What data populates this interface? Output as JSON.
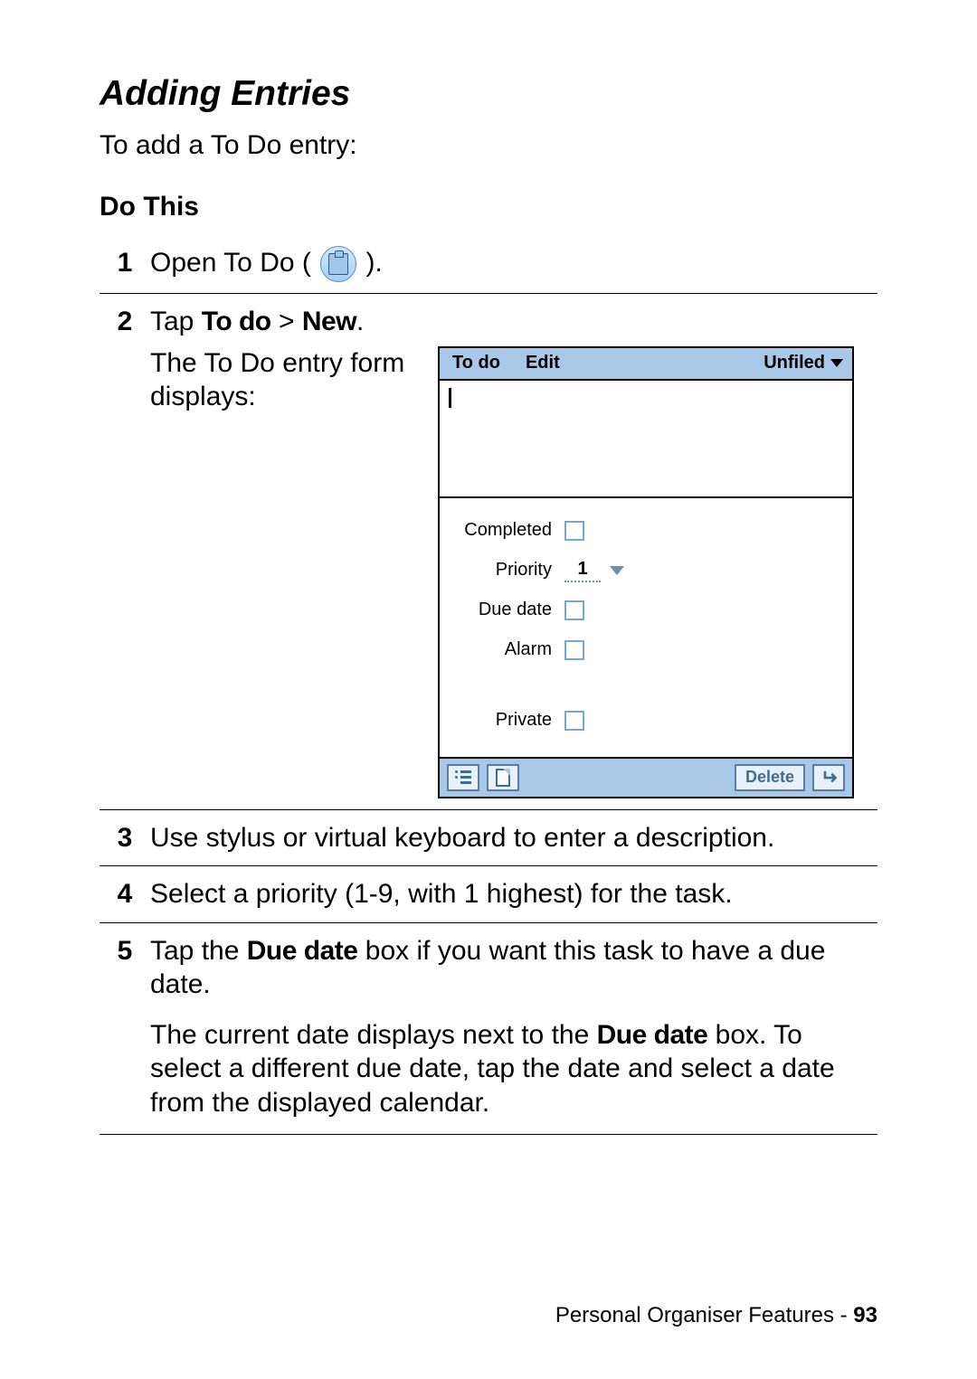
{
  "heading": "Adding Entries",
  "intro": "To add a To Do entry:",
  "do_this": "Do This",
  "steps": {
    "s1": {
      "num": "1",
      "pre": "Open To Do ( ",
      "post": " )."
    },
    "s2": {
      "num": "2",
      "line1_a": "Tap ",
      "line1_b": "To do",
      "line1_c": " > ",
      "line1_d": "New",
      "line1_e": ".",
      "line2": "The To Do entry form displays:"
    },
    "s3": {
      "num": "3",
      "text": "Use stylus or virtual keyboard to enter a description."
    },
    "s4": {
      "num": "4",
      "text": "Select a priority (1-9, with 1 highest) for the task."
    },
    "s5": {
      "num": "5",
      "p1_a": "Tap the ",
      "p1_b": "Due date",
      "p1_c": " box if you want this task to have a due date.",
      "p2_a": "The current date displays next to the ",
      "p2_b": "Due date",
      "p2_c": " box. To select a different due date, tap the date and select a date from the displayed calendar."
    }
  },
  "pda": {
    "menubar": {
      "todo": "To do",
      "edit": "Edit",
      "category": "Unfiled"
    },
    "fields": {
      "completed": "Completed",
      "priority": "Priority",
      "priority_value": "1",
      "due_date": "Due date",
      "alarm": "Alarm",
      "private": "Private"
    },
    "toolbar": {
      "delete": "Delete"
    },
    "colors": {
      "bar_bg": "#a9c7e6",
      "btn_border": "#5a7fa0",
      "btn_bg": "#e8f1fa",
      "checkbox_border": "#7ba7cf"
    }
  },
  "footer": {
    "section": "Personal Organiser Features",
    "sep": " - ",
    "page": "93"
  }
}
